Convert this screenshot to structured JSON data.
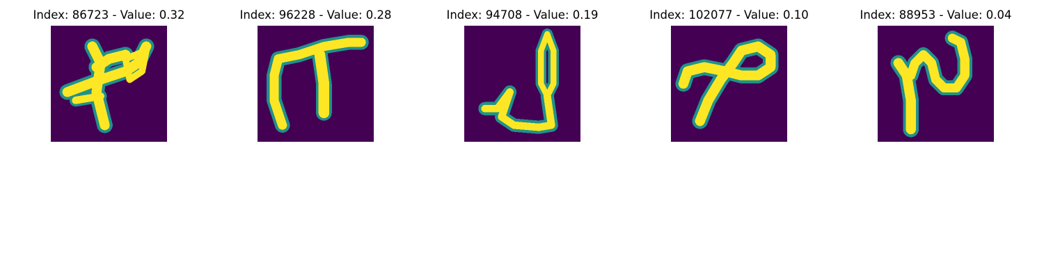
{
  "colors": {
    "background": "#440154",
    "edge": "#21918c",
    "core": "#fde725"
  },
  "panels": [
    {
      "title": "Index: 86723 - Value: 0.32"
    },
    {
      "title": "Index: 96228 - Value: 0.28"
    },
    {
      "title": "Index: 94708 - Value: 0.19"
    },
    {
      "title": "Index: 102077 - Value: 0.10"
    },
    {
      "title": "Index: 88953 - Value: 0.04"
    }
  ]
}
